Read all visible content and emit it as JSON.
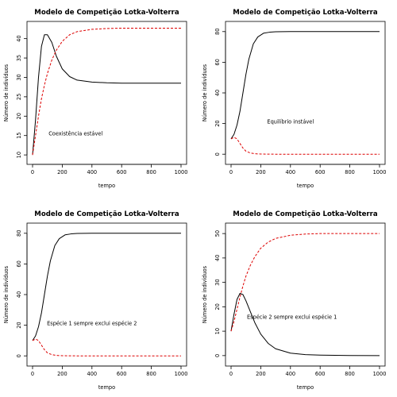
{
  "colors": {
    "species1": "#000000",
    "species2": "#dd0000"
  },
  "chart_data": [
    {
      "type": "line",
      "title": "Modelo de Competição Lotka-Volterra",
      "xlabel": "tempo",
      "ylabel": "Número de indivíduos",
      "xlim": [
        0,
        1000
      ],
      "ylim": [
        9,
        43
      ],
      "xticks": [
        0,
        200,
        400,
        600,
        800,
        1000
      ],
      "yticks": [
        10,
        15,
        20,
        25,
        30,
        35,
        40
      ],
      "annotation": "Coexistência estável",
      "annotation_at": [
        290,
        15
      ],
      "series": [
        {
          "style": "solid",
          "color": "#000000",
          "x": [
            0,
            20,
            40,
            60,
            80,
            100,
            130,
            160,
            200,
            250,
            300,
            400,
            500,
            600,
            800,
            1000
          ],
          "y": [
            10,
            19,
            30,
            38,
            41,
            41,
            39,
            35.5,
            32.2,
            30.2,
            29.3,
            28.8,
            28.6,
            28.5,
            28.5,
            28.5
          ]
        },
        {
          "style": "dashed",
          "color": "#dd0000",
          "x": [
            0,
            20,
            40,
            60,
            80,
            100,
            130,
            160,
            200,
            250,
            300,
            400,
            500,
            600,
            800,
            1000
          ],
          "y": [
            10,
            15,
            20,
            24.5,
            28,
            31,
            34.5,
            37,
            39.3,
            41,
            41.8,
            42.4,
            42.6,
            42.7,
            42.7,
            42.7
          ]
        }
      ]
    },
    {
      "type": "line",
      "title": "Modelo de Competição Lotka-Volterra",
      "xlabel": "tempo",
      "ylabel": "Número de indivíduos",
      "xlim": [
        0,
        1000
      ],
      "ylim": [
        -3,
        83
      ],
      "xticks": [
        0,
        200,
        400,
        600,
        800,
        1000
      ],
      "yticks": [
        0,
        20,
        40,
        60,
        80
      ],
      "annotation": "Equilíbrio instável",
      "annotation_at": [
        400,
        20
      ],
      "series": [
        {
          "style": "solid",
          "color": "#000000",
          "x": [
            0,
            20,
            40,
            60,
            80,
            100,
            120,
            150,
            180,
            220,
            260,
            300,
            400,
            600,
            800,
            1000
          ],
          "y": [
            10,
            13,
            19,
            28,
            40,
            52,
            62,
            72,
            76.5,
            79,
            79.6,
            79.9,
            80,
            80,
            80,
            80
          ]
        },
        {
          "style": "dashed",
          "color": "#dd0000",
          "x": [
            0,
            20,
            40,
            60,
            80,
            100,
            130,
            160,
            200,
            300,
            400,
            600,
            800,
            1000
          ],
          "y": [
            10,
            11,
            10,
            7,
            4,
            2,
            0.8,
            0.3,
            0.1,
            0,
            0,
            0,
            0,
            0
          ]
        }
      ]
    },
    {
      "type": "line",
      "title": "Modelo de Competição Lotka-Volterra",
      "xlabel": "tempo",
      "ylabel": "Número de indivíduos",
      "xlim": [
        0,
        1000
      ],
      "ylim": [
        -3,
        83
      ],
      "xticks": [
        0,
        200,
        400,
        600,
        800,
        1000
      ],
      "yticks": [
        0,
        20,
        40,
        60,
        80
      ],
      "annotation": "Espécie 1 sempre exclui espécie 2",
      "annotation_at": [
        400,
        20
      ],
      "series": [
        {
          "style": "solid",
          "color": "#000000",
          "x": [
            0,
            20,
            40,
            60,
            80,
            100,
            120,
            150,
            180,
            220,
            260,
            300,
            400,
            600,
            800,
            1000
          ],
          "y": [
            10,
            13,
            19,
            28,
            40,
            52,
            62,
            72,
            76.5,
            79,
            79.6,
            79.9,
            80,
            80,
            80,
            80
          ]
        },
        {
          "style": "dashed",
          "color": "#dd0000",
          "x": [
            0,
            20,
            40,
            60,
            80,
            100,
            130,
            160,
            200,
            300,
            400,
            600,
            800,
            1000
          ],
          "y": [
            10,
            11,
            10,
            7,
            4,
            2,
            0.8,
            0.3,
            0.1,
            0,
            0,
            0,
            0,
            0
          ]
        }
      ]
    },
    {
      "type": "line",
      "title": "Modelo de Competição Lotka-Volterra",
      "xlabel": "tempo",
      "ylabel": "Número de indivíduos",
      "xlim": [
        0,
        1000
      ],
      "ylim": [
        -2,
        52
      ],
      "xticks": [
        0,
        200,
        400,
        600,
        800,
        1000
      ],
      "yticks": [
        0,
        10,
        20,
        30,
        40,
        50
      ],
      "annotation": "Espécie 2 sempre exclui espécie 1",
      "annotation_at": [
        410,
        15
      ],
      "series": [
        {
          "style": "solid",
          "color": "#000000",
          "x": [
            0,
            20,
            40,
            60,
            80,
            100,
            130,
            160,
            200,
            250,
            300,
            400,
            500,
            600,
            800,
            1000
          ],
          "y": [
            10,
            17,
            23,
            25.5,
            25,
            22.5,
            18,
            13.5,
            8.8,
            5,
            2.8,
            1,
            0.4,
            0.2,
            0.05,
            0
          ]
        },
        {
          "style": "dashed",
          "color": "#dd0000",
          "x": [
            0,
            20,
            40,
            60,
            80,
            100,
            130,
            160,
            200,
            250,
            300,
            400,
            500,
            600,
            800,
            1000
          ],
          "y": [
            10,
            14,
            19,
            24,
            28.5,
            32.5,
            37,
            40.5,
            44,
            46.5,
            48,
            49.3,
            49.8,
            50,
            50,
            50
          ]
        }
      ]
    }
  ]
}
